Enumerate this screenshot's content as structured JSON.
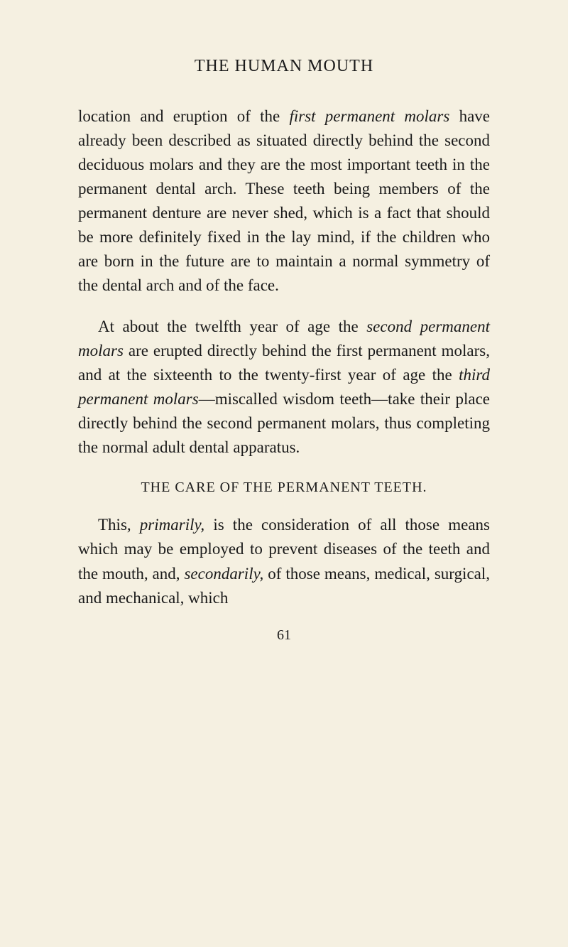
{
  "colors": {
    "background": "#f5f0e1",
    "text": "#1a1a1a"
  },
  "typography": {
    "body_fontsize": 23,
    "header_fontsize": 24,
    "section_fontsize": 20,
    "pagenum_fontsize": 20,
    "line_height": 1.48,
    "font_family": "Georgia, 'Times New Roman', serif"
  },
  "header": {
    "title": "THE HUMAN MOUTH"
  },
  "paragraphs": {
    "p1_pre": "location and eruption of the ",
    "p1_italic1": "first permanent molars",
    "p1_post": " have already been described as situated directly behind the second deciduous molars and they are the most important teeth in the permanent dental arch. These teeth being members of the permanent denture are never shed, which is a fact that should be more definitely fixed in the lay mind, if the children who are born in the future are to maintain a normal symmetry of the dental arch and of the face.",
    "p2_pre": "At about the twelfth year of age the ",
    "p2_italic1": "second permanent molars",
    "p2_mid1": " are erupted directly behind the first permanent molars, and at the sixteenth to the twenty-first year of age the ",
    "p2_italic2": "third permanent molars",
    "p2_post": "—miscalled wisdom teeth—take their place directly behind the second permanent molars, thus completing the normal adult dental apparatus.",
    "p3_pre": "This, ",
    "p3_italic1": "primarily,",
    "p3_mid1": " is the consideration of all those means which may be employed to prevent diseases of the teeth and the mouth, and, ",
    "p3_italic2": "secondarily,",
    "p3_post": " of those means, medical, surgical, and mechanical, which"
  },
  "section": {
    "heading": "THE CARE OF THE PERMANENT TEETH."
  },
  "page_number": "61"
}
